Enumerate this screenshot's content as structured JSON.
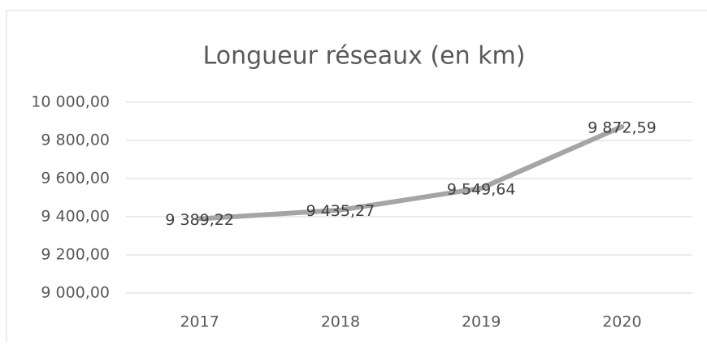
{
  "chart_data": {
    "type": "line",
    "title": "Longueur réseaux (en km)",
    "categories": [
      "2017",
      "2018",
      "2019",
      "2020"
    ],
    "series": [
      {
        "name": "Longueur réseaux",
        "color": "#a5a5a5",
        "values": [
          9389.22,
          9435.27,
          9549.64,
          9872.59
        ],
        "value_labels": [
          "9 389,22",
          "9 435,27",
          "9 549,64",
          "9 872,59"
        ]
      }
    ],
    "ylim": [
      9000,
      10000
    ],
    "yticks": [
      {
        "value": 9000,
        "label": "9 000,00"
      },
      {
        "value": 9200,
        "label": "9 200,00"
      },
      {
        "value": 9400,
        "label": "9 400,00"
      },
      {
        "value": 9600,
        "label": "9 600,00"
      },
      {
        "value": 9800,
        "label": "9 800,00"
      },
      {
        "value": 10000,
        "label": "10 000,00"
      }
    ],
    "grid": true
  }
}
